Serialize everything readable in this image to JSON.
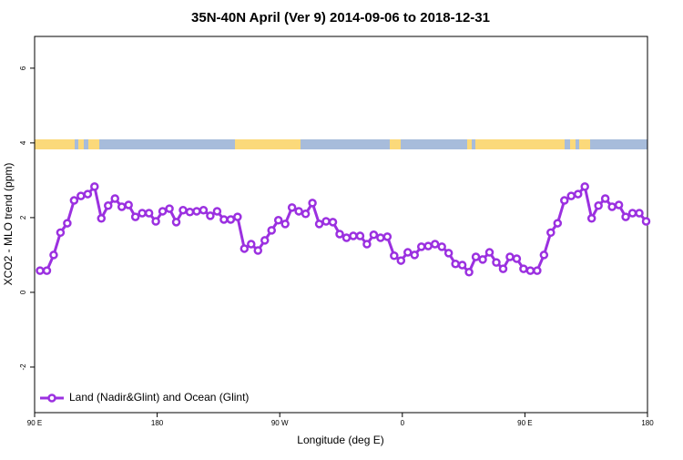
{
  "chart_data": {
    "type": "line",
    "title": "35N-40N April (Ver 9)   2014-09-06 to 2018-12-31",
    "xlabel": "Longitude (deg E)",
    "ylabel": "XCO2 - MLO trend (ppm)",
    "xlim": [
      90,
      540
    ],
    "ylim": [
      -3.22,
      6.85
    ],
    "xticks": [
      {
        "value": 90,
        "label": "90 E"
      },
      180,
      {
        "value": 270,
        "label": "90 W"
      },
      {
        "value": 360,
        "label": "0"
      },
      {
        "value": 450,
        "label": "90 E"
      },
      {
        "value": 540,
        "label": "180"
      }
    ],
    "yticks": [
      -2,
      0,
      2,
      4,
      6
    ],
    "legend": "bottom-left",
    "x": [
      94,
      99,
      104,
      109,
      114,
      119,
      124,
      129,
      134,
      139,
      144,
      149,
      154,
      159,
      164,
      169,
      174,
      179,
      184,
      189,
      194,
      199,
      204,
      209,
      214,
      219,
      224,
      229,
      234,
      239,
      244,
      249,
      254,
      259,
      264,
      269,
      274,
      279,
      284,
      289,
      294,
      299,
      304,
      309,
      314,
      319,
      324,
      329,
      334,
      339,
      344,
      349,
      354,
      359,
      364,
      369,
      374,
      379,
      384,
      389,
      394,
      399,
      404,
      409,
      414,
      419,
      424,
      429,
      434,
      439,
      444,
      449,
      454,
      459,
      464,
      469,
      474,
      479,
      484,
      489,
      494,
      499,
      504,
      509,
      514,
      519,
      524,
      529,
      534,
      539
    ],
    "series": [
      {
        "name": "Land (Nadir&Glint) and Ocean (Glint)",
        "color": "#9b30e0",
        "values": [
          0.58,
          0.58,
          1.0,
          1.6,
          1.85,
          2.46,
          2.58,
          2.63,
          2.83,
          1.98,
          2.32,
          2.51,
          2.29,
          2.34,
          2.02,
          2.12,
          2.12,
          1.9,
          2.17,
          2.24,
          1.88,
          2.2,
          2.15,
          2.17,
          2.2,
          2.05,
          2.17,
          1.95,
          1.95,
          2.02,
          1.17,
          1.29,
          1.12,
          1.39,
          1.66,
          1.93,
          1.83,
          2.27,
          2.17,
          2.1,
          2.39,
          1.83,
          1.9,
          1.88,
          1.56,
          1.46,
          1.51,
          1.51,
          1.29,
          1.54,
          1.46,
          1.49,
          0.98,
          0.85,
          1.07,
          1.0,
          1.22,
          1.24,
          1.29,
          1.22,
          1.05,
          0.76,
          0.73,
          0.54,
          0.95,
          0.88,
          1.07,
          0.8,
          0.63,
          0.95,
          0.9,
          0.63,
          0.58,
          0.58,
          1.0,
          1.6,
          1.85,
          2.46,
          2.58,
          2.63,
          2.83,
          1.98,
          2.32,
          2.51,
          2.29,
          2.34,
          2.02,
          2.12,
          2.12,
          1.9
        ]
      }
    ]
  }
}
